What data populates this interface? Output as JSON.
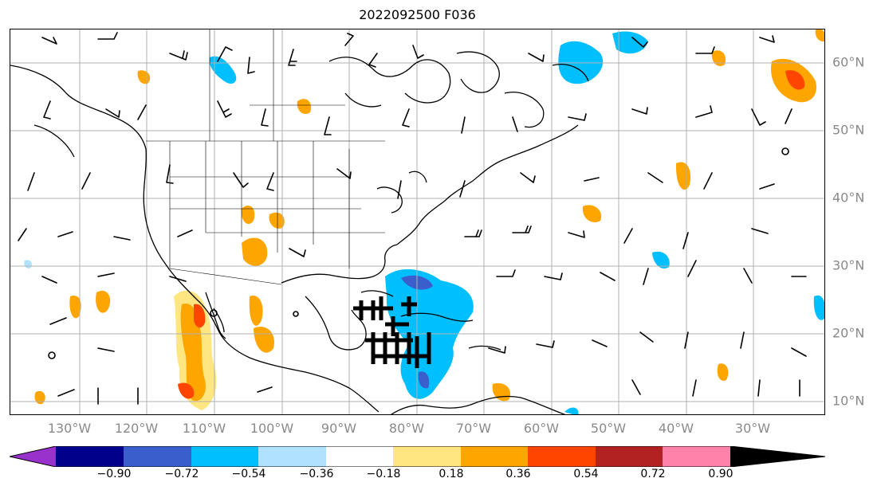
{
  "title": "2022092500 F036",
  "longitude_labels": [
    "130°W",
    "120°W",
    "110°W",
    "100°W",
    "90°W",
    "80°W",
    "70°W",
    "60°W",
    "50°W",
    "40°W",
    "30°W"
  ],
  "latitude_labels": [
    "60°N",
    "50°N",
    "40°N",
    "30°N",
    "20°N",
    "10°N"
  ],
  "colorbar": {
    "ticks": [
      "−0.90",
      "−0.72",
      "−0.54",
      "−0.36",
      "−0.18",
      "0.18",
      "0.36",
      "0.54",
      "0.72",
      "0.90"
    ],
    "colors": [
      "#9932cc",
      "#00008b",
      "#3a5fcd",
      "#00bfff",
      "#b0e2ff",
      "#ffffff",
      "#ffe680",
      "#ffa500",
      "#ff4500",
      "#b22222",
      "#ff82ab"
    ]
  },
  "map": {
    "grid_color": "#b0b0b0",
    "coastline_color": "#000000"
  }
}
